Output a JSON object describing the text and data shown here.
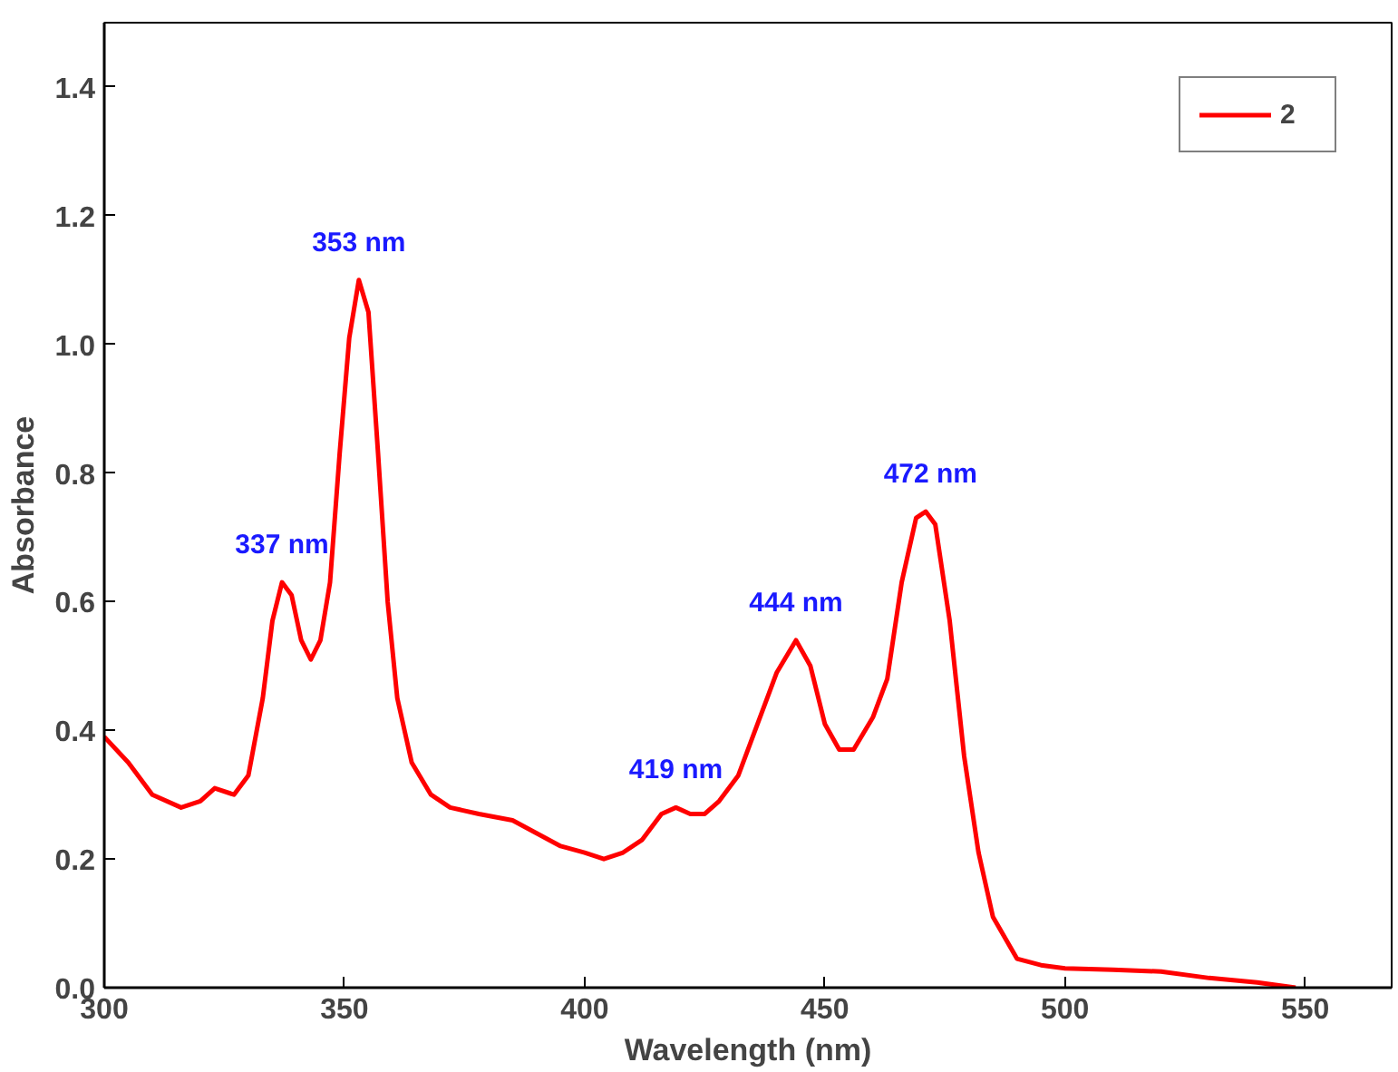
{
  "chart_data": {
    "type": "line",
    "xlabel": "Wavelength (nm)",
    "ylabel": "Absorbance",
    "xlim": [
      300,
      568
    ],
    "ylim": [
      0,
      1.5
    ],
    "xticks": [
      300,
      350,
      400,
      450,
      500,
      550
    ],
    "yticks": [
      {
        "value": 0,
        "label": "0.0"
      },
      0.2,
      0.4,
      0.6,
      0.8,
      {
        "value": 1,
        "label": "1.0"
      },
      1.2,
      1.4
    ],
    "grid": false,
    "legend": "top right",
    "marker": "none",
    "line_style": "solid",
    "series": [
      {
        "name": "2",
        "color": "#ff0000",
        "x": [
          300,
          305,
          310,
          316,
          320,
          323,
          327,
          330,
          333,
          335,
          337,
          339,
          341,
          343,
          345,
          347,
          349,
          351,
          353,
          355,
          357,
          359,
          361,
          364,
          368,
          372,
          378,
          385,
          390,
          395,
          400,
          404,
          408,
          412,
          416,
          419,
          422,
          425,
          428,
          432,
          436,
          440,
          444,
          447,
          450,
          453,
          456,
          460,
          463,
          466,
          469,
          471,
          473,
          476,
          479,
          482,
          485,
          490,
          495,
          500,
          510,
          520,
          530,
          540,
          548
        ],
        "values": [
          0.39,
          0.35,
          0.3,
          0.28,
          0.29,
          0.31,
          0.3,
          0.33,
          0.45,
          0.57,
          0.63,
          0.61,
          0.54,
          0.51,
          0.54,
          0.63,
          0.83,
          1.01,
          1.1,
          1.05,
          0.83,
          0.6,
          0.45,
          0.35,
          0.3,
          0.28,
          0.27,
          0.26,
          0.24,
          0.22,
          0.21,
          0.2,
          0.21,
          0.23,
          0.27,
          0.28,
          0.27,
          0.27,
          0.29,
          0.33,
          0.41,
          0.49,
          0.54,
          0.5,
          0.41,
          0.37,
          0.37,
          0.42,
          0.48,
          0.63,
          0.73,
          0.74,
          0.72,
          0.57,
          0.36,
          0.21,
          0.11,
          0.045,
          0.035,
          0.03,
          0.028,
          0.025,
          0.015,
          0.008,
          0.0
        ]
      }
    ],
    "annotations": [
      {
        "text": "337 nm",
        "x": 337,
        "y": 0.63
      },
      {
        "text": "353 nm",
        "x": 353,
        "y": 1.1
      },
      {
        "text": "419 nm",
        "x": 419,
        "y": 0.28
      },
      {
        "text": "444 nm",
        "x": 444,
        "y": 0.54
      },
      {
        "text": "472 nm",
        "x": 472,
        "y": 0.74
      }
    ]
  }
}
